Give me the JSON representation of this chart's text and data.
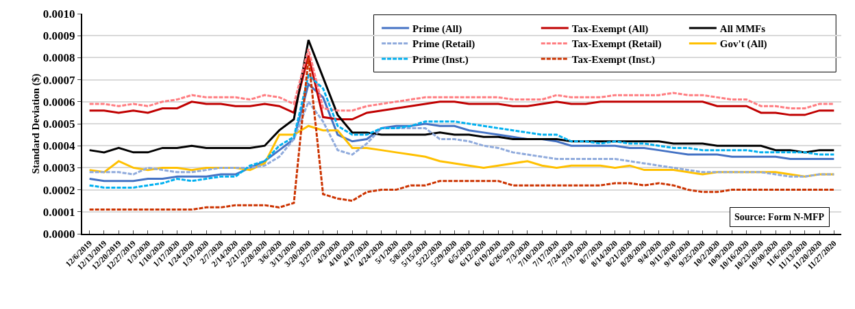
{
  "chart_data": {
    "type": "line",
    "ylabel": "Standard Deviation ($)",
    "categories": [
      "12/6/2019",
      "12/13/2019",
      "12/20/2019",
      "12/27/2019",
      "1/3/2020",
      "1/10/2020",
      "1/17/2020",
      "1/24/2020",
      "1/31/2020",
      "2/7/2020",
      "2/14/2020",
      "2/21/2020",
      "2/28/2020",
      "3/6/2020",
      "3/13/2020",
      "3/20/2020",
      "3/27/2020",
      "4/3/2020",
      "4/10/2020",
      "4/17/2020",
      "4/24/2020",
      "5/1/2020",
      "5/8/2020",
      "5/15/2020",
      "5/22/2020",
      "5/29/2020",
      "6/5/2020",
      "6/12/2020",
      "6/19/2020",
      "6/26/2020",
      "7/3/2020",
      "7/10/2020",
      "7/17/2020",
      "7/24/2020",
      "7/31/2020",
      "8/7/2020",
      "8/14/2020",
      "8/21/2020",
      "8/28/2020",
      "9/4/2020",
      "9/11/2020",
      "9/18/2020",
      "9/25/2020",
      "10/2/2020",
      "10/9/2020",
      "10/16/2020",
      "10/23/2020",
      "10/30/2020",
      "11/6/2020",
      "11/13/2020",
      "11/20/2020",
      "11/27/2020"
    ],
    "series": [
      {
        "name": "Prime (All)",
        "color": "#4472c4",
        "line_style": "solid",
        "values": [
          0.00025,
          0.00024,
          0.00024,
          0.00024,
          0.00025,
          0.00025,
          0.00026,
          0.00026,
          0.00026,
          0.00027,
          0.00027,
          0.0003,
          0.00033,
          0.00038,
          0.00043,
          0.00068,
          0.00062,
          0.00045,
          0.00042,
          0.00043,
          0.00048,
          0.00049,
          0.00049,
          0.0005,
          0.00049,
          0.00049,
          0.00047,
          0.00046,
          0.00045,
          0.00044,
          0.00043,
          0.00043,
          0.00042,
          0.0004,
          0.0004,
          0.0004,
          0.0004,
          0.00039,
          0.00039,
          0.00038,
          0.00037,
          0.00036,
          0.00036,
          0.00036,
          0.00035,
          0.00035,
          0.00035,
          0.00035,
          0.00034,
          0.00034,
          0.00034,
          0.00034
        ]
      },
      {
        "name": "Tax-Exempt (All)",
        "color": "#c00000",
        "line_style": "solid",
        "values": [
          0.00056,
          0.00056,
          0.00055,
          0.00056,
          0.00055,
          0.00057,
          0.00057,
          0.0006,
          0.00059,
          0.00059,
          0.00058,
          0.00058,
          0.00059,
          0.00058,
          0.00055,
          0.00081,
          0.00053,
          0.00052,
          0.00052,
          0.00055,
          0.00056,
          0.00057,
          0.00058,
          0.00059,
          0.0006,
          0.0006,
          0.00059,
          0.00059,
          0.00059,
          0.00058,
          0.00058,
          0.00059,
          0.0006,
          0.00059,
          0.00059,
          0.0006,
          0.0006,
          0.0006,
          0.0006,
          0.0006,
          0.0006,
          0.0006,
          0.0006,
          0.00058,
          0.00058,
          0.00058,
          0.00055,
          0.00055,
          0.00054,
          0.00054,
          0.00056,
          0.00056
        ]
      },
      {
        "name": "All MMFs",
        "color": "#000000",
        "line_style": "solid",
        "values": [
          0.00038,
          0.00037,
          0.00039,
          0.00037,
          0.00037,
          0.00039,
          0.00039,
          0.0004,
          0.00039,
          0.00039,
          0.00039,
          0.00039,
          0.0004,
          0.00047,
          0.00052,
          0.00088,
          0.00071,
          0.00054,
          0.00046,
          0.00046,
          0.00045,
          0.00045,
          0.00045,
          0.00045,
          0.00046,
          0.00045,
          0.00045,
          0.00044,
          0.00044,
          0.00043,
          0.00043,
          0.00043,
          0.00043,
          0.00042,
          0.00042,
          0.00042,
          0.00042,
          0.00042,
          0.00042,
          0.00042,
          0.00041,
          0.00041,
          0.00041,
          0.0004,
          0.0004,
          0.0004,
          0.0004,
          0.00038,
          0.00038,
          0.00037,
          0.00038,
          0.00038
        ]
      },
      {
        "name": "Prime (Retail)",
        "color": "#8faadc",
        "line_style": "dashed",
        "values": [
          0.00028,
          0.00028,
          0.00028,
          0.00027,
          0.0003,
          0.00029,
          0.00028,
          0.00028,
          0.00029,
          0.0003,
          0.0003,
          0.0003,
          0.00031,
          0.00035,
          0.00043,
          0.0006,
          0.00051,
          0.00038,
          0.00036,
          0.00041,
          0.00048,
          0.00048,
          0.00048,
          0.00048,
          0.00043,
          0.00043,
          0.00042,
          0.0004,
          0.00039,
          0.00037,
          0.00036,
          0.00035,
          0.00034,
          0.00034,
          0.00034,
          0.00034,
          0.00034,
          0.00033,
          0.00032,
          0.00031,
          0.0003,
          0.00029,
          0.00028,
          0.00028,
          0.00028,
          0.00028,
          0.00028,
          0.00027,
          0.00026,
          0.00026,
          0.00027,
          0.00027
        ]
      },
      {
        "name": "Tax-Exempt (Retail)",
        "color": "#ff7c80",
        "line_style": "dashed",
        "values": [
          0.00059,
          0.00059,
          0.00058,
          0.00059,
          0.00058,
          0.0006,
          0.00061,
          0.00063,
          0.00062,
          0.00062,
          0.00062,
          0.00061,
          0.00063,
          0.00062,
          0.00059,
          0.00084,
          0.00057,
          0.00056,
          0.00056,
          0.00058,
          0.00059,
          0.0006,
          0.00061,
          0.00062,
          0.00062,
          0.00062,
          0.00062,
          0.00062,
          0.00062,
          0.00061,
          0.00061,
          0.00061,
          0.00063,
          0.00062,
          0.00062,
          0.00062,
          0.00063,
          0.00063,
          0.00063,
          0.00063,
          0.00064,
          0.00063,
          0.00063,
          0.00062,
          0.00061,
          0.00061,
          0.00058,
          0.00058,
          0.00057,
          0.00057,
          0.00059,
          0.00059
        ]
      },
      {
        "name": "Gov't (All)",
        "color": "#ffc000",
        "line_style": "solid",
        "values": [
          0.00029,
          0.00028,
          0.00033,
          0.0003,
          0.00029,
          0.0003,
          0.0003,
          0.00029,
          0.0003,
          0.0003,
          0.0003,
          0.00029,
          0.00032,
          0.00045,
          0.00045,
          0.00049,
          0.00047,
          0.00047,
          0.00039,
          0.00039,
          0.00038,
          0.00037,
          0.00036,
          0.00035,
          0.00033,
          0.00032,
          0.00031,
          0.0003,
          0.00031,
          0.00032,
          0.00033,
          0.00031,
          0.0003,
          0.00031,
          0.00031,
          0.00031,
          0.0003,
          0.00031,
          0.00029,
          0.00029,
          0.00029,
          0.00028,
          0.00027,
          0.00028,
          0.00028,
          0.00028,
          0.00028,
          0.00028,
          0.00027,
          0.00026,
          0.00027,
          0.00027
        ]
      },
      {
        "name": "Prime (Inst.)",
        "color": "#00b0f0",
        "line_style": "dashed",
        "values": [
          0.00022,
          0.00021,
          0.00021,
          0.00021,
          0.00022,
          0.00023,
          0.00025,
          0.00024,
          0.00025,
          0.00026,
          0.00026,
          0.00031,
          0.00033,
          0.0004,
          0.00044,
          0.00072,
          0.00066,
          0.00049,
          0.00045,
          0.00045,
          0.00048,
          0.00048,
          0.00049,
          0.00051,
          0.00051,
          0.00051,
          0.0005,
          0.00049,
          0.00048,
          0.00047,
          0.00046,
          0.00045,
          0.00045,
          0.00042,
          0.00042,
          0.00041,
          0.00042,
          0.00041,
          0.00041,
          0.0004,
          0.00039,
          0.00039,
          0.00038,
          0.00038,
          0.00038,
          0.00038,
          0.00037,
          0.00037,
          0.00037,
          0.00037,
          0.00036,
          0.00036
        ]
      },
      {
        "name": "Tax-Exempt (Inst.)",
        "color": "#cc3300",
        "line_style": "dashed",
        "values": [
          0.00011,
          0.00011,
          0.00011,
          0.00011,
          0.00011,
          0.00011,
          0.00011,
          0.00011,
          0.00012,
          0.00012,
          0.00013,
          0.00013,
          0.00013,
          0.00012,
          0.00014,
          0.0008,
          0.00018,
          0.00016,
          0.00015,
          0.00019,
          0.0002,
          0.0002,
          0.00022,
          0.00022,
          0.00024,
          0.00024,
          0.00024,
          0.00024,
          0.00024,
          0.00022,
          0.00022,
          0.00022,
          0.00022,
          0.00022,
          0.00022,
          0.00022,
          0.00023,
          0.00023,
          0.00022,
          0.00023,
          0.00022,
          0.0002,
          0.00019,
          0.00019,
          0.0002,
          0.0002,
          0.0002,
          0.0002,
          0.0002,
          0.0002,
          0.0002,
          0.0002
        ]
      }
    ],
    "ylim": [
      0,
      0.001
    ],
    "yticks": [
      {
        "value": 0,
        "label": "0.0000"
      },
      {
        "value": 0.0001,
        "label": "0.0001"
      },
      {
        "value": 0.0002,
        "label": "0.0002"
      },
      {
        "value": 0.0003,
        "label": "0.0003"
      },
      {
        "value": 0.0004,
        "label": "0.0004"
      },
      {
        "value": 0.0005,
        "label": "0.0005"
      },
      {
        "value": 0.0006,
        "label": "0.0006"
      },
      {
        "value": 0.0007,
        "label": "0.0007"
      },
      {
        "value": 0.0008,
        "label": "0.0008"
      },
      {
        "value": 0.0009,
        "label": "0.0009"
      },
      {
        "value": 0.001,
        "label": "0.0010"
      }
    ],
    "grid": "y",
    "legend": "top right",
    "marker": "none",
    "annotations": [
      "Source: Form N-MFP"
    ]
  }
}
